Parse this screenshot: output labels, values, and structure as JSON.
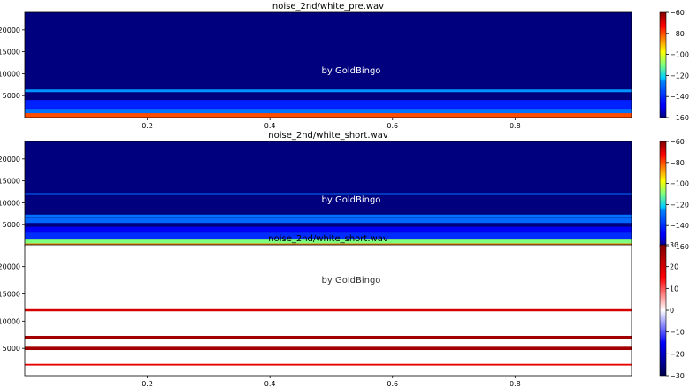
{
  "chart_data": [
    {
      "type": "heatmap",
      "title": "noise_2nd/white_pre.wav",
      "watermark": "by GoldBingo",
      "x_ticks": [
        0.2,
        0.4,
        0.6,
        0.8
      ],
      "x_range": [
        0.0,
        0.99
      ],
      "y_ticks": [
        5000,
        10000,
        15000,
        20000
      ],
      "y_tick_labels": [
        "5000",
        "10000",
        "15000",
        "20000"
      ],
      "y_range": [
        0,
        24000
      ],
      "colormap": "jet",
      "colorbar_ticks": [
        -160,
        -140,
        -120,
        -100,
        -80,
        -60
      ],
      "colorbar_range": [
        -160,
        -60
      ],
      "background_level": -160,
      "bands": [
        {
          "y_from": 0,
          "y_to": 1000,
          "level": -80
        },
        {
          "y_from": 1000,
          "y_to": 2000,
          "level": -128
        },
        {
          "y_from": 2000,
          "y_to": 4000,
          "level": -142
        },
        {
          "y_from": 5800,
          "y_to": 6400,
          "level": -125
        }
      ]
    },
    {
      "type": "heatmap",
      "title": "noise_2nd/white_short.wav",
      "watermark": "by GoldBingo",
      "x_ticks": [
        0.2,
        0.4,
        0.6,
        0.8
      ],
      "x_range": [
        0.0,
        0.99
      ],
      "y_ticks": [
        5000,
        10000,
        15000,
        20000
      ],
      "y_tick_labels": [
        "5000",
        "10000",
        "15000",
        "20000"
      ],
      "y_range": [
        0,
        24000
      ],
      "colormap": "jet",
      "colorbar_ticks": [
        -160,
        -140,
        -120,
        -100,
        -80,
        -60
      ],
      "colorbar_range": [
        -160,
        -60
      ],
      "background_level": -160,
      "bands": [
        {
          "y_from": 0,
          "y_to": 700,
          "level": -85
        },
        {
          "y_from": 700,
          "y_to": 1800,
          "level": -110
        },
        {
          "y_from": 1800,
          "y_to": 3200,
          "level": -140
        },
        {
          "y_from": 3200,
          "y_to": 4500,
          "level": -150
        },
        {
          "y_from": 5400,
          "y_to": 6600,
          "level": -130
        },
        {
          "y_from": 6800,
          "y_to": 7300,
          "level": -128
        },
        {
          "y_from": 11800,
          "y_to": 12200,
          "level": -128
        }
      ]
    },
    {
      "type": "heatmap",
      "title": "noise_2nd/white_short.wav",
      "watermark": "by GoldBingo",
      "x_ticks": [
        0.2,
        0.4,
        0.6,
        0.8
      ],
      "x_range": [
        0.0,
        0.99
      ],
      "y_ticks": [
        5000,
        10000,
        15000,
        20000
      ],
      "y_tick_labels": [
        "5000",
        "10000",
        "15000",
        "20000"
      ],
      "y_range": [
        0,
        24000
      ],
      "colormap": "seismic",
      "colorbar_ticks": [
        -30,
        -20,
        -10,
        0,
        10,
        20,
        30
      ],
      "colorbar_range": [
        -30,
        30
      ],
      "background_level": 0,
      "bands": [
        {
          "y_from": 1850,
          "y_to": 2150,
          "level": 18
        },
        {
          "y_from": 4700,
          "y_to": 5300,
          "level": 26
        },
        {
          "y_from": 6700,
          "y_to": 7300,
          "level": 26
        },
        {
          "y_from": 11800,
          "y_to": 12200,
          "level": 20
        }
      ]
    }
  ]
}
